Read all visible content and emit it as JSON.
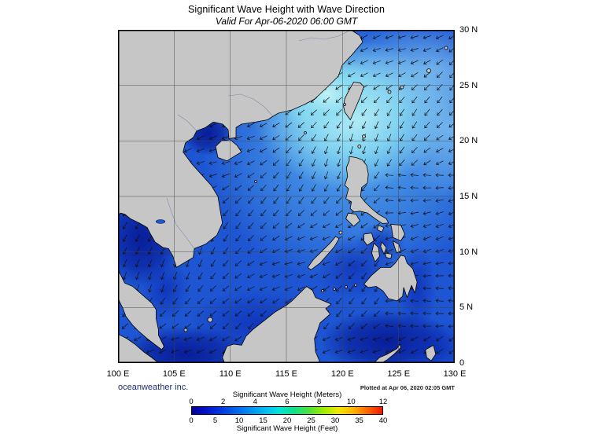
{
  "header": {
    "title": "Significant Wave Height with Wave Direction",
    "subtitle": "Valid For Apr-06-2020 06:00 GMT"
  },
  "map": {
    "lat_labels": [
      "30 N",
      "25 N",
      "20 N",
      "15 N",
      "10 N",
      "5 N",
      "0"
    ],
    "lon_labels": [
      "100 E",
      "105 E",
      "110 E",
      "115 E",
      "120 E",
      "125 E",
      "130 E"
    ]
  },
  "footer": {
    "credit": "oceanweather inc.",
    "plotted": "Plotted at Apr 06, 2020 02:05 GMT"
  },
  "colorbar": {
    "title_meters": "Significant Wave Height (Meters)",
    "title_feet": "Significant Wave Height (Feet)",
    "meters_ticks": [
      "0",
      "2",
      "4",
      "6",
      "8",
      "10",
      "12"
    ],
    "feet_ticks": [
      "0",
      "5",
      "10",
      "15",
      "20",
      "25",
      "30",
      "35",
      "40"
    ],
    "gradient": [
      "#0000a0",
      "#0014cc",
      "#0038e0",
      "#0064ec",
      "#0090f2",
      "#00bcf2",
      "#00e4d8",
      "#10e088",
      "#48e438",
      "#a0ec00",
      "#f0e800",
      "#ffb400",
      "#ff6400",
      "#f01800"
    ]
  }
}
